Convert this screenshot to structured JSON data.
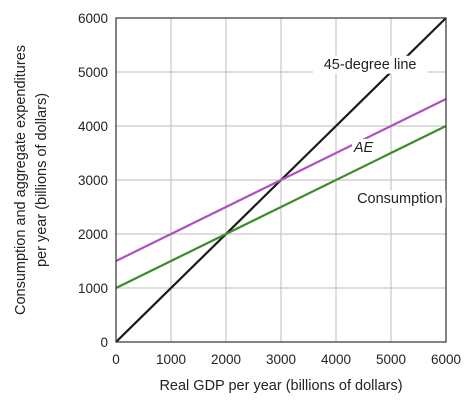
{
  "chart_data": {
    "type": "line",
    "title": "",
    "xlabel": "Real GDP per year (billions of dollars)",
    "ylabel_lines": [
      "Consumption and aggregate expenditures",
      "per year (billions of dollars)"
    ],
    "xlim": [
      0,
      6000
    ],
    "ylim": [
      0,
      6000
    ],
    "x_ticks": [
      0,
      1000,
      2000,
      3000,
      4000,
      5000,
      6000
    ],
    "y_ticks": [
      0,
      1000,
      2000,
      3000,
      4000,
      5000,
      6000
    ],
    "grid": true,
    "series": [
      {
        "name": "45-degree line",
        "color": "#1a1a1a",
        "x": [
          0,
          6000
        ],
        "y": [
          0,
          6000
        ]
      },
      {
        "name": "AE",
        "color": "#b04fbf",
        "x": [
          0,
          6000
        ],
        "y": [
          1500,
          4500
        ]
      },
      {
        "name": "Consumption",
        "color": "#3c8c2e",
        "x": [
          0,
          6000
        ],
        "y": [
          1000,
          4000
        ]
      }
    ],
    "annotations": [
      {
        "text": "45-degree line",
        "x": 4620,
        "y": 5060,
        "italic": false
      },
      {
        "text": "AE",
        "x": 4500,
        "y": 3520,
        "italic": true
      },
      {
        "text": "Consumption",
        "x": 5160,
        "y": 2570,
        "italic": false
      }
    ]
  }
}
